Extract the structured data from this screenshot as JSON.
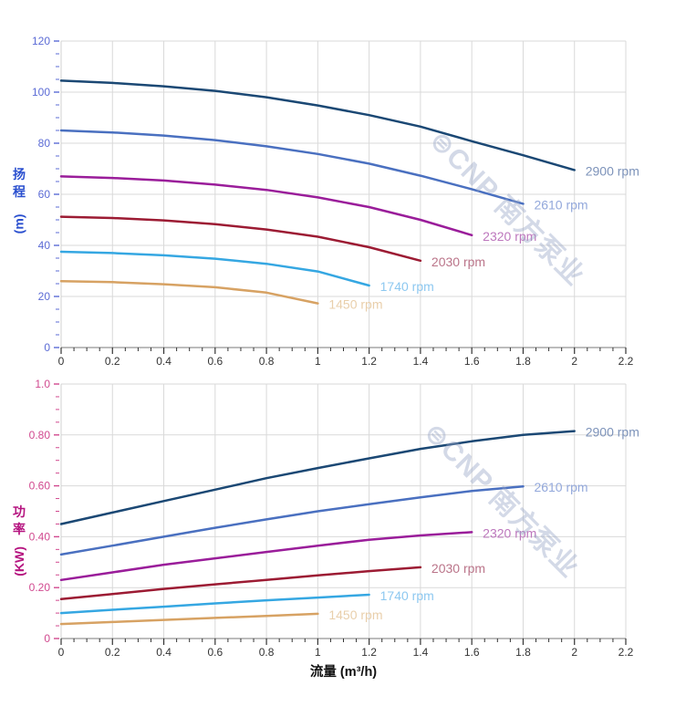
{
  "watermark": {
    "text": "⊜CNP 南方泵业",
    "color": "rgba(150,165,198,0.42)"
  },
  "x_axis_title": {
    "text": "流量 (m³/h)",
    "color": "#111111"
  },
  "axes_style": {
    "grid_color": "#d9d9d9",
    "border_color": "#d0d0d0",
    "x_axis_color": "#7a7a7a",
    "x_tick_color": "#333333",
    "x_label_color": "#333333"
  },
  "chart_data": [
    {
      "type": "line",
      "title": "",
      "xlabel": "流量 (m³/h)",
      "ylabel": "扬程 (m)",
      "ylabel_chars": [
        "扬",
        "程"
      ],
      "ylabel_unit": "(m)",
      "xlim": [
        0,
        2.2
      ],
      "ylim": [
        0,
        120
      ],
      "x_major": 0.2,
      "x_minor": 0.05,
      "y_major": 20,
      "y_minor": 5,
      "x_tick_labels": [
        "0",
        "0.2",
        "0.4",
        "0.6",
        "0.8",
        "1",
        "1.2",
        "1.4",
        "1.6",
        "1.8",
        "2",
        "2.2"
      ],
      "y_tick_labels": [
        "0",
        "20",
        "40",
        "60",
        "80",
        "100",
        "120"
      ],
      "style": {
        "title_color": "#2b50cf",
        "tick_color": "#5b6bd5",
        "tick_label_color": "#5b6bd5"
      },
      "legend_position": "end-of-curve",
      "grid": true,
      "series": [
        {
          "name": "2900 rpm",
          "color": "#1b4874",
          "label_color": "#7d93ba",
          "points": [
            [
              0,
              104.5
            ],
            [
              0.2,
              103.6
            ],
            [
              0.4,
              102.3
            ],
            [
              0.6,
              100.5
            ],
            [
              0.8,
              98.0
            ],
            [
              1.0,
              94.8
            ],
            [
              1.2,
              91.0
            ],
            [
              1.4,
              86.5
            ],
            [
              1.6,
              80.8
            ],
            [
              1.8,
              75.3
            ],
            [
              2.0,
              69.5
            ]
          ]
        },
        {
          "name": "2610 rpm",
          "color": "#4a70c0",
          "label_color": "#93a8db",
          "points": [
            [
              0,
              85.0
            ],
            [
              0.2,
              84.2
            ],
            [
              0.4,
              83.0
            ],
            [
              0.6,
              81.2
            ],
            [
              0.8,
              78.8
            ],
            [
              1.0,
              75.8
            ],
            [
              1.2,
              72.0
            ],
            [
              1.4,
              67.3
            ],
            [
              1.6,
              62.0
            ],
            [
              1.8,
              56.3
            ]
          ]
        },
        {
          "name": "2320 rpm",
          "color": "#9a1d9a",
          "label_color": "#bd77bd",
          "points": [
            [
              0,
              67.0
            ],
            [
              0.2,
              66.4
            ],
            [
              0.4,
              65.4
            ],
            [
              0.6,
              63.8
            ],
            [
              0.8,
              61.7
            ],
            [
              1.0,
              58.8
            ],
            [
              1.2,
              55.0
            ],
            [
              1.4,
              50.0
            ],
            [
              1.6,
              44.0
            ]
          ]
        },
        {
          "name": "2030 rpm",
          "color": "#9c1b33",
          "label_color": "#ba7489",
          "points": [
            [
              0,
              51.2
            ],
            [
              0.2,
              50.7
            ],
            [
              0.4,
              49.8
            ],
            [
              0.6,
              48.3
            ],
            [
              0.8,
              46.2
            ],
            [
              1.0,
              43.4
            ],
            [
              1.2,
              39.3
            ],
            [
              1.4,
              34.0
            ]
          ]
        },
        {
          "name": "1740 rpm",
          "color": "#35a7e2",
          "label_color": "#8dc8f0",
          "points": [
            [
              0,
              37.5
            ],
            [
              0.2,
              37.0
            ],
            [
              0.4,
              36.1
            ],
            [
              0.6,
              34.8
            ],
            [
              0.8,
              32.8
            ],
            [
              1.0,
              29.8
            ],
            [
              1.2,
              24.3
            ]
          ]
        },
        {
          "name": "1450 rpm",
          "color": "#d7a263",
          "label_color": "#e9cfab",
          "points": [
            [
              0,
              26.0
            ],
            [
              0.2,
              25.6
            ],
            [
              0.4,
              24.8
            ],
            [
              0.6,
              23.6
            ],
            [
              0.8,
              21.5
            ],
            [
              1.0,
              17.3
            ]
          ]
        }
      ]
    },
    {
      "type": "line",
      "title": "",
      "xlabel": "流量 (m³/h)",
      "ylabel": "功率 (KW)",
      "ylabel_chars": [
        "功",
        "率"
      ],
      "ylabel_unit": "(KW)",
      "xlim": [
        0,
        2.2
      ],
      "ylim": [
        0,
        1.0
      ],
      "x_major": 0.2,
      "x_minor": 0.05,
      "y_major": 0.2,
      "y_minor": 0.05,
      "x_tick_labels": [
        "0",
        "0.2",
        "0.4",
        "0.6",
        "0.8",
        "1",
        "1.2",
        "1.4",
        "1.6",
        "1.8",
        "2",
        "2.2"
      ],
      "y_tick_labels": [
        "0",
        "0.20",
        "0.40",
        "0.60",
        "0.80",
        "1.0"
      ],
      "style": {
        "title_color": "#b5137f",
        "tick_color": "#d1498f",
        "tick_label_color": "#d1498f"
      },
      "legend_position": "end-of-curve",
      "grid": true,
      "series": [
        {
          "name": "2900 rpm",
          "color": "#1b4874",
          "label_color": "#7d93ba",
          "points": [
            [
              0,
              0.45
            ],
            [
              0.2,
              0.495
            ],
            [
              0.4,
              0.54
            ],
            [
              0.6,
              0.585
            ],
            [
              0.8,
              0.63
            ],
            [
              1.0,
              0.67
            ],
            [
              1.2,
              0.708
            ],
            [
              1.4,
              0.745
            ],
            [
              1.6,
              0.775
            ],
            [
              1.8,
              0.8
            ],
            [
              2.0,
              0.815
            ]
          ]
        },
        {
          "name": "2610 rpm",
          "color": "#4a70c0",
          "label_color": "#93a8db",
          "points": [
            [
              0,
              0.33
            ],
            [
              0.2,
              0.365
            ],
            [
              0.4,
              0.4
            ],
            [
              0.6,
              0.435
            ],
            [
              0.8,
              0.468
            ],
            [
              1.0,
              0.5
            ],
            [
              1.2,
              0.528
            ],
            [
              1.4,
              0.555
            ],
            [
              1.6,
              0.58
            ],
            [
              1.8,
              0.598
            ]
          ]
        },
        {
          "name": "2320 rpm",
          "color": "#9a1d9a",
          "label_color": "#bd77bd",
          "points": [
            [
              0,
              0.23
            ],
            [
              0.2,
              0.26
            ],
            [
              0.4,
              0.29
            ],
            [
              0.6,
              0.315
            ],
            [
              0.8,
              0.34
            ],
            [
              1.0,
              0.365
            ],
            [
              1.2,
              0.388
            ],
            [
              1.4,
              0.405
            ],
            [
              1.6,
              0.418
            ]
          ]
        },
        {
          "name": "2030 rpm",
          "color": "#9c1b33",
          "label_color": "#ba7489",
          "points": [
            [
              0,
              0.155
            ],
            [
              0.2,
              0.175
            ],
            [
              0.4,
              0.195
            ],
            [
              0.6,
              0.213
            ],
            [
              0.8,
              0.23
            ],
            [
              1.0,
              0.248
            ],
            [
              1.2,
              0.265
            ],
            [
              1.4,
              0.28
            ]
          ]
        },
        {
          "name": "1740 rpm",
          "color": "#35a7e2",
          "label_color": "#8dc8f0",
          "points": [
            [
              0,
              0.1
            ],
            [
              0.2,
              0.113
            ],
            [
              0.4,
              0.125
            ],
            [
              0.6,
              0.138
            ],
            [
              0.8,
              0.15
            ],
            [
              1.0,
              0.161
            ],
            [
              1.2,
              0.172
            ]
          ]
        },
        {
          "name": "1450 rpm",
          "color": "#d7a263",
          "label_color": "#e9cfab",
          "points": [
            [
              0,
              0.057
            ],
            [
              0.2,
              0.065
            ],
            [
              0.4,
              0.073
            ],
            [
              0.6,
              0.081
            ],
            [
              0.8,
              0.089
            ],
            [
              1.0,
              0.097
            ]
          ]
        }
      ]
    }
  ]
}
